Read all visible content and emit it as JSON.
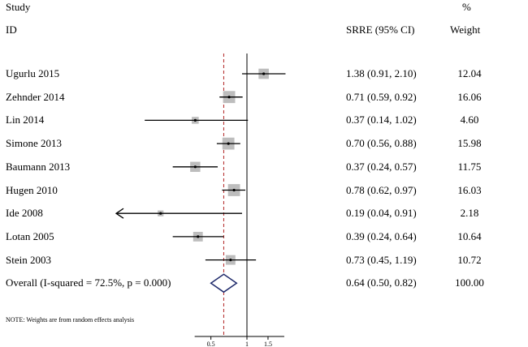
{
  "header": {
    "study": "Study",
    "id": "ID",
    "percent": "%",
    "estimate": "SRRE (95% CI)",
    "weight": "Weight"
  },
  "note": "NOTE: Weights are from random effects analysis",
  "chart_data": {
    "type": "forest",
    "x_scale": "log",
    "null_value": 1,
    "overall_estimate_line": 0.64,
    "ticks": [
      {
        "value": 0.5,
        "label": "0.5"
      },
      {
        "value": 1,
        "label": "1"
      },
      {
        "value": 1.5,
        "label": "1.5"
      }
    ],
    "studies": [
      {
        "label": "Ugurlu 2015",
        "est": 1.38,
        "lo": 0.91,
        "hi": 2.1,
        "text": "1.38 (0.91, 2.10)",
        "weight": 12.04,
        "weight_text": "12.04"
      },
      {
        "label": "Zehnder 2014",
        "est": 0.71,
        "lo": 0.59,
        "hi": 0.92,
        "text": "0.71 (0.59, 0.92)",
        "weight": 16.06,
        "weight_text": "16.06"
      },
      {
        "label": "Lin 2014",
        "est": 0.37,
        "lo": 0.14,
        "hi": 1.02,
        "text": "0.37 (0.14, 1.02)",
        "weight": 4.6,
        "weight_text": "4.60"
      },
      {
        "label": "Simone 2013",
        "est": 0.7,
        "lo": 0.56,
        "hi": 0.88,
        "text": "0.70 (0.56, 0.88)",
        "weight": 15.98,
        "weight_text": "15.98"
      },
      {
        "label": "Baumann 2013",
        "est": 0.37,
        "lo": 0.24,
        "hi": 0.57,
        "text": "0.37 (0.24, 0.57)",
        "weight": 11.75,
        "weight_text": "11.75"
      },
      {
        "label": "Hugen 2010",
        "est": 0.78,
        "lo": 0.62,
        "hi": 0.97,
        "text": "0.78 (0.62, 0.97)",
        "weight": 16.03,
        "weight_text": "16.03"
      },
      {
        "label": "Ide 2008",
        "est": 0.19,
        "lo": 0.04,
        "hi": 0.91,
        "text": "0.19 (0.04, 0.91)",
        "weight": 2.18,
        "weight_text": "2.18",
        "truncated_low": true
      },
      {
        "label": "Lotan 2005",
        "est": 0.39,
        "lo": 0.24,
        "hi": 0.64,
        "text": "0.39 (0.24, 0.64)",
        "weight": 10.64,
        "weight_text": "10.64"
      },
      {
        "label": "Stein 2003",
        "est": 0.73,
        "lo": 0.45,
        "hi": 1.19,
        "text": "0.73 (0.45, 1.19)",
        "weight": 10.72,
        "weight_text": "10.72"
      }
    ],
    "overall": {
      "label": "Overall  (I-squared = 72.5%, p = 0.000)",
      "est": 0.64,
      "lo": 0.5,
      "hi": 0.82,
      "text": "0.64 (0.50, 0.82)",
      "weight_text": "100.00"
    },
    "colors": {
      "marker": "#bdbdbd",
      "line": "#000000",
      "diamond": "#1f2a6b",
      "dashed": "#b22222"
    }
  }
}
